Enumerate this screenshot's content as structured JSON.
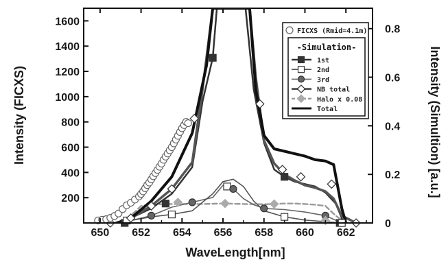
{
  "chart_data": {
    "type": "line",
    "xlabel": "WaveLength[nm]",
    "ylabel": "Intensity (FICXS)",
    "y2label": "Intensity (Simultion) [a.u.]",
    "xlim": [
      649.2,
      663.3
    ],
    "ylim": [
      0,
      1700
    ],
    "y2lim": [
      0,
      0.884
    ],
    "x_ticks": [
      650,
      652,
      654,
      656,
      658,
      660,
      662
    ],
    "y_ticks": [
      200,
      400,
      600,
      800,
      1000,
      1200,
      1400,
      1600
    ],
    "y2_ticks": [
      0,
      0.2,
      0.4,
      0.6,
      0.8
    ],
    "x_tick_labels": [
      "650",
      "652",
      "654",
      "656",
      "658",
      "660",
      "662"
    ],
    "y_tick_labels": [
      "200",
      "400",
      "600",
      "800",
      "1000",
      "1200",
      "1400",
      "1600"
    ],
    "y2_tick_labels": [
      "0",
      "0.2",
      "0.4",
      "0.6",
      "0.8"
    ],
    "grid": false,
    "legend_position": "top-right",
    "legend": {
      "ficxs_label": "FICXS (Rmid=4.1m)",
      "sim_header": "-Simulation-",
      "entries": [
        {
          "label": "1st",
          "series": "1st"
        },
        {
          "label": "2nd",
          "series": "2nd"
        },
        {
          "label": "3rd",
          "series": "3rd"
        },
        {
          "label": "NB total",
          "series": "NB total"
        },
        {
          "label": "Halo x 0.08",
          "series": "Halo x 0.08"
        },
        {
          "label": "Total",
          "series": "Total"
        }
      ]
    },
    "ficxs": {
      "name": "FICXS (Rmid=4.1m)",
      "axis": "left",
      "x": [
        649.9,
        650.1,
        650.3,
        650.5,
        650.7,
        650.9,
        651.1,
        651.3,
        651.5,
        651.7,
        651.9,
        652.0,
        652.1,
        652.2,
        652.3,
        652.4,
        652.5,
        652.6,
        652.7,
        652.8,
        652.9,
        653.0,
        653.1,
        653.2,
        653.3,
        653.4,
        653.5,
        653.6,
        653.7,
        653.8,
        653.9,
        654.0,
        654.1,
        654.2,
        654.3
      ],
      "y": [
        20,
        25,
        30,
        40,
        55,
        75,
        110,
        140,
        160,
        185,
        210,
        230,
        250,
        275,
        300,
        320,
        345,
        370,
        395,
        420,
        445,
        470,
        500,
        525,
        550,
        575,
        600,
        630,
        660,
        690,
        720,
        750,
        775,
        800,
        790
      ]
    },
    "series": [
      {
        "name": "Total",
        "axis": "right",
        "color": "#111111",
        "width": 4,
        "dash": "",
        "x": [
          650.9,
          651.5,
          652.5,
          653.5,
          654.5,
          655.2,
          655.5,
          657.3,
          657.6,
          658.0,
          658.5,
          659.0,
          659.5,
          660.0,
          660.5,
          661.0,
          661.4,
          661.8,
          662.0
        ],
        "y": [
          0.0,
          0.02,
          0.09,
          0.19,
          0.37,
          0.65,
          0.884,
          0.884,
          0.55,
          0.36,
          0.305,
          0.295,
          0.285,
          0.275,
          0.26,
          0.255,
          0.24,
          0.06,
          0.0
        ]
      },
      {
        "name": "NB total",
        "axis": "right",
        "color": "#555555",
        "width": 3.5,
        "dash": "",
        "x": [
          650.9,
          651.5,
          652.5,
          653.5,
          654.5,
          655.0,
          655.5,
          657.3,
          657.6,
          658.0,
          658.5,
          659.0,
          659.5,
          660.0,
          660.5,
          661.0,
          661.4,
          661.8,
          662.5
        ],
        "y": [
          0.0,
          0.02,
          0.07,
          0.14,
          0.25,
          0.55,
          0.884,
          0.884,
          0.6,
          0.34,
          0.245,
          0.2,
          0.175,
          0.155,
          0.145,
          0.13,
          0.1,
          0.03,
          0.0
        ]
      },
      {
        "name": "1st",
        "axis": "right",
        "color": "#333333",
        "width": 2.5,
        "dash": "",
        "x": [
          650.7,
          651.5,
          652.5,
          653.5,
          654.5,
          655.0,
          655.5,
          655.7,
          657.1,
          657.5,
          658.0,
          658.5,
          659.0,
          659.5,
          660.0,
          660.5,
          661.0,
          661.5,
          661.9
        ],
        "y": [
          0.0,
          0.02,
          0.06,
          0.12,
          0.23,
          0.5,
          0.68,
          0.884,
          0.884,
          0.55,
          0.33,
          0.22,
          0.19,
          0.17,
          0.16,
          0.15,
          0.125,
          0.08,
          0.0
        ]
      },
      {
        "name": "2nd",
        "axis": "right",
        "color": "#555555",
        "width": 1.6,
        "dash": "",
        "x": [
          650.9,
          651.5,
          652.5,
          653.5,
          654.5,
          655.5,
          656.0,
          656.5,
          657.0,
          657.5,
          658.0,
          659.0,
          660.0,
          661.0,
          661.8
        ],
        "y": [
          0.0,
          0.01,
          0.025,
          0.035,
          0.05,
          0.12,
          0.17,
          0.18,
          0.15,
          0.09,
          0.05,
          0.025,
          0.012,
          0.005,
          0.0
        ]
      },
      {
        "name": "3rd",
        "axis": "right",
        "color": "#666666",
        "width": 1.6,
        "dash": "",
        "x": [
          650.9,
          651.5,
          652.5,
          653.5,
          654.5,
          655.5,
          656.0,
          656.5,
          657.0,
          657.5,
          658.0,
          659.0,
          660.0,
          661.0,
          661.8
        ],
        "y": [
          0.0,
          0.01,
          0.03,
          0.065,
          0.085,
          0.105,
          0.155,
          0.14,
          0.1,
          0.075,
          0.06,
          0.055,
          0.045,
          0.03,
          0.0
        ]
      },
      {
        "name": "Halo x 0.08",
        "axis": "right",
        "color": "#999999",
        "width": 2.4,
        "dash": "7 4",
        "x": [
          651.0,
          651.5,
          652.0,
          652.5,
          653.0,
          653.5,
          654.0,
          654.5,
          655.0,
          655.5,
          656.0,
          656.5,
          657.0,
          657.5,
          658.0,
          658.5,
          659.0,
          659.5,
          660.0,
          660.5,
          661.0,
          661.5,
          662.0
        ],
        "y": [
          0.0,
          0.03,
          0.07,
          0.075,
          0.077,
          0.078,
          0.078,
          0.078,
          0.078,
          0.079,
          0.08,
          0.079,
          0.078,
          0.077,
          0.077,
          0.078,
          0.08,
          0.08,
          0.078,
          0.075,
          0.07,
          0.03,
          0.0
        ]
      }
    ],
    "markers": [
      {
        "series": "1st",
        "shape": "square",
        "fill": "#333333",
        "points": [
          [
            651.2,
            0.0
          ],
          [
            653.2,
            0.08
          ],
          [
            655.5,
            0.68
          ],
          [
            659.0,
            0.19
          ],
          [
            661.7,
            0.0
          ]
        ]
      },
      {
        "series": "2nd",
        "shape": "square",
        "fill": "#ffffff",
        "points": [
          [
            651.3,
            0.01
          ],
          [
            653.5,
            0.035
          ],
          [
            656.2,
            0.15
          ],
          [
            659.0,
            0.025
          ],
          [
            661.8,
            0.0
          ]
        ]
      },
      {
        "series": "3rd",
        "shape": "circle",
        "fill": "#666666",
        "points": [
          [
            652.5,
            0.03
          ],
          [
            654.5,
            0.085
          ],
          [
            656.5,
            0.14
          ],
          [
            658.0,
            0.06
          ],
          [
            661.0,
            0.03
          ]
        ]
      },
      {
        "series": "NB total",
        "shape": "diamond",
        "fill": "#ffffff",
        "points": [
          [
            650.5,
            0.0
          ],
          [
            651.5,
            0.02
          ],
          [
            652.5,
            0.07
          ],
          [
            653.5,
            0.14
          ],
          [
            654.6,
            0.43
          ],
          [
            657.8,
            0.49
          ],
          [
            658.9,
            0.22
          ],
          [
            659.8,
            0.19
          ],
          [
            661.3,
            0.16
          ],
          [
            662.5,
            0.0
          ]
        ]
      },
      {
        "series": "Halo x 0.08",
        "shape": "diamond",
        "fill": "#aaaaaa",
        "points": [
          [
            653.8,
            0.085
          ],
          [
            656.1,
            0.08
          ],
          [
            658.5,
            0.078
          ],
          [
            661.0,
            0.01
          ]
        ]
      }
    ]
  }
}
